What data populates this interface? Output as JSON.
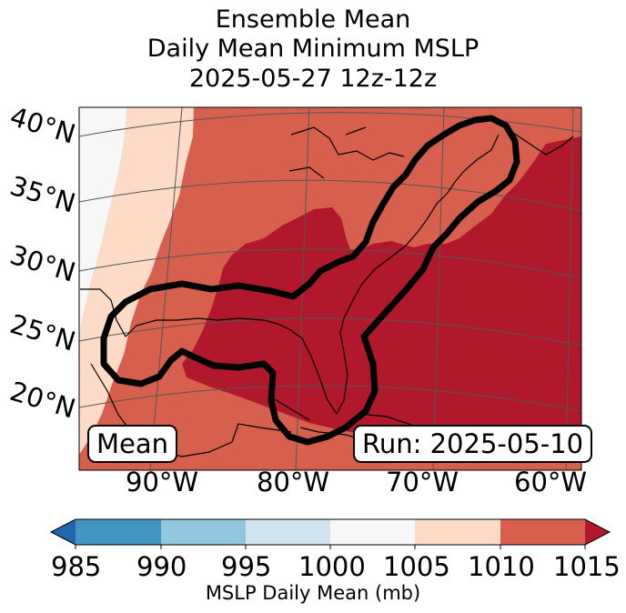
{
  "title": {
    "line1": "Ensemble Mean",
    "line2": "Daily Mean Minimum MSLP",
    "line3": "2025-05-27 12z-12z"
  },
  "latitude_labels": [
    "40°N",
    "35°N",
    "30°N",
    "25°N",
    "20°N"
  ],
  "longitude_labels": [
    "90°W",
    "80°W",
    "70°W",
    "60°W"
  ],
  "mean_label": "Mean",
  "run_label": "Run: 2025-05-10",
  "colorbar": {
    "title": "MSLP Daily Mean (mb)",
    "ticks": [
      "985",
      "990",
      "995",
      "1000",
      "1005",
      "1010",
      "1015"
    ],
    "colors": {
      "below_985": "#2166ac",
      "b985_990": "#4393c3",
      "b990_995": "#92c5de",
      "b995_1000": "#d1e5f0",
      "b1000_1005": "#f7f7f7",
      "b1005_1010": "#fddbc7",
      "b1010_1015": "#d6604d",
      "above_1015": "#b2182b"
    }
  }
}
